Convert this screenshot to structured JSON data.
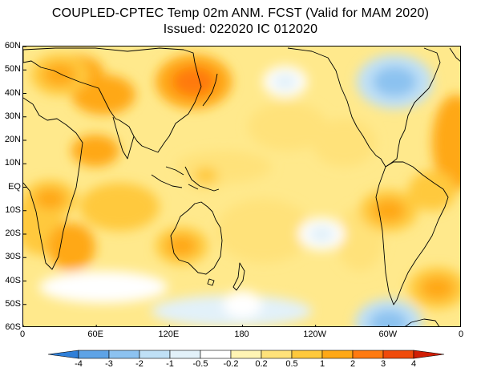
{
  "header": {
    "title_line1": "COUPLED-CPTEC Temp 02m ANM. FCST  (Valid for MAM 2020)",
    "title_line2": "Issued:  022020 IC 012020"
  },
  "axes": {
    "lat_labels": [
      "60N",
      "50N",
      "40N",
      "30N",
      "20N",
      "10N",
      "EQ",
      "10S",
      "20S",
      "30S",
      "40S",
      "50S",
      "60S"
    ],
    "lon_labels": [
      "0",
      "60E",
      "120E",
      "180",
      "120W",
      "60W",
      "0"
    ]
  },
  "colorbar": {
    "boundaries": [
      "-4",
      "-3",
      "-2",
      "-1",
      "-0.5",
      "-0.2",
      "0.2",
      "0.5",
      "1",
      "2",
      "3",
      "4"
    ],
    "colors": [
      "#2f7fd8",
      "#5ea3e6",
      "#8cc2f0",
      "#bfe0f6",
      "#e2f1f9",
      "#ffffff",
      "#fff4b4",
      "#ffe27a",
      "#ffc93c",
      "#ffa816",
      "#ff7a10",
      "#f04a0a",
      "#d01e05"
    ]
  },
  "chart_data": {
    "type": "heatmap",
    "title": "COUPLED-CPTEC Temp 02m ANM. FCST  (Valid for MAM 2020)",
    "subtitle": "Issued:  022020 IC 012020",
    "variable": "2 m temperature anomaly forecast",
    "xlabel": "",
    "ylabel": "",
    "xlim": [
      0,
      360
    ],
    "ylim": [
      -60,
      60
    ],
    "lon_ticks": [
      0,
      60,
      120,
      180,
      240,
      300,
      360
    ],
    "lat_ticks": [
      60,
      50,
      40,
      30,
      20,
      10,
      0,
      -10,
      -20,
      -30,
      -40,
      -50,
      -60
    ],
    "levels": [
      -4,
      -3,
      -2,
      -1,
      -0.5,
      -0.2,
      0.2,
      0.5,
      1,
      2,
      3,
      4
    ],
    "anomaly_features": [
      {
        "name": "East Asia warm",
        "lon": 140,
        "lat": 45,
        "value": 2.5
      },
      {
        "name": "Southeast Europe warm",
        "lon": 30,
        "lat": 48,
        "value": 1.5
      },
      {
        "name": "Western Pacific warm",
        "lon": 150,
        "lat": 5,
        "value": 0.6
      },
      {
        "name": "Australia warm",
        "lon": 130,
        "lat": -25,
        "value": 1.2
      },
      {
        "name": "Africa warm",
        "lon": 22,
        "lat": -5,
        "value": 1.2
      },
      {
        "name": "South America warm",
        "lon": 300,
        "lat": -10,
        "value": 1.5
      },
      {
        "name": "Southern Ocean warm",
        "lon": 340,
        "lat": -43,
        "value": 1.5
      },
      {
        "name": "Labrador cool",
        "lon": 305,
        "lat": 45,
        "value": -2.5
      },
      {
        "name": "North Pacific cool",
        "lon": 215,
        "lat": 45,
        "value": -0.7
      },
      {
        "name": "Southeast Pacific cool",
        "lon": 245,
        "lat": -20,
        "value": -0.8
      },
      {
        "name": "Southern Ocean cool",
        "lon": 300,
        "lat": -58,
        "value": -2.0
      },
      {
        "name": "South Pacific cool",
        "lon": 180,
        "lat": -50,
        "value": -0.4
      }
    ]
  }
}
